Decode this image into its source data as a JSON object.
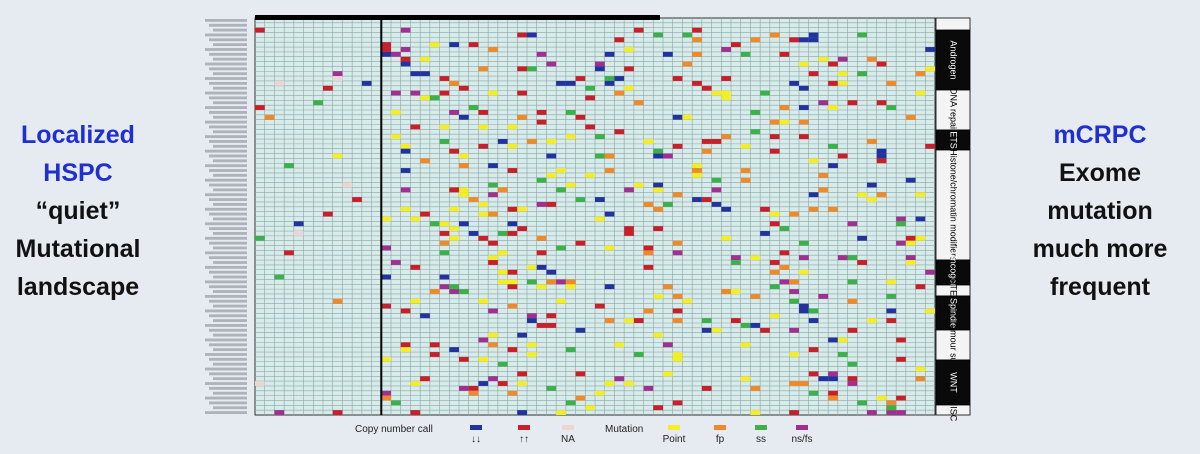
{
  "left_text": {
    "lines": [
      {
        "text": "Localized",
        "color": "#1f2fd0"
      },
      {
        "text": "HSPC",
        "color": "#1f2fd0"
      },
      {
        "text": "“quiet”",
        "color": "#111111"
      },
      {
        "text": "Mutational",
        "color": "#111111"
      },
      {
        "text": "landscape",
        "color": "#111111"
      }
    ]
  },
  "right_text": {
    "lines": [
      {
        "text": "mCRPC",
        "color": "#1f2fd0"
      },
      {
        "text": "Exome",
        "color": "#111111"
      },
      {
        "text": "mutation",
        "color": "#111111"
      },
      {
        "text": "much more",
        "color": "#111111"
      },
      {
        "text": "frequent",
        "color": "#111111"
      }
    ]
  },
  "sections": [
    {
      "label": "Androgen",
      "dark": true
    },
    {
      "label": "DNA repair",
      "dark": false
    },
    {
      "label": "ETS",
      "dark": true
    },
    {
      "label": "Histone/chromatin modifiers",
      "dark": false
    },
    {
      "label": "Oncogene",
      "dark": true
    },
    {
      "label": "PTEN",
      "dark": false
    },
    {
      "label": "Spindle",
      "dark": true
    },
    {
      "label": "Tumour sup.",
      "dark": false
    },
    {
      "label": "WNT",
      "dark": true
    },
    {
      "label": "MISC",
      "dark": false
    }
  ],
  "legend": {
    "copy_number_title": "Copy number call",
    "copy_number": [
      {
        "label": "↓↓",
        "color": "#2233a0"
      },
      {
        "label": "↑↑",
        "color": "#c8202a"
      },
      {
        "label": "NA",
        "color": "#ecd6d2"
      }
    ],
    "mutation_title": "Mutation",
    "mutation": [
      {
        "label": "Point",
        "color": "#f4ee2a"
      },
      {
        "label": "fp",
        "color": "#ee8a2a"
      },
      {
        "label": "ss",
        "color": "#3cb04a"
      },
      {
        "label": "ns/fs",
        "color": "#a03090"
      }
    ]
  }
}
